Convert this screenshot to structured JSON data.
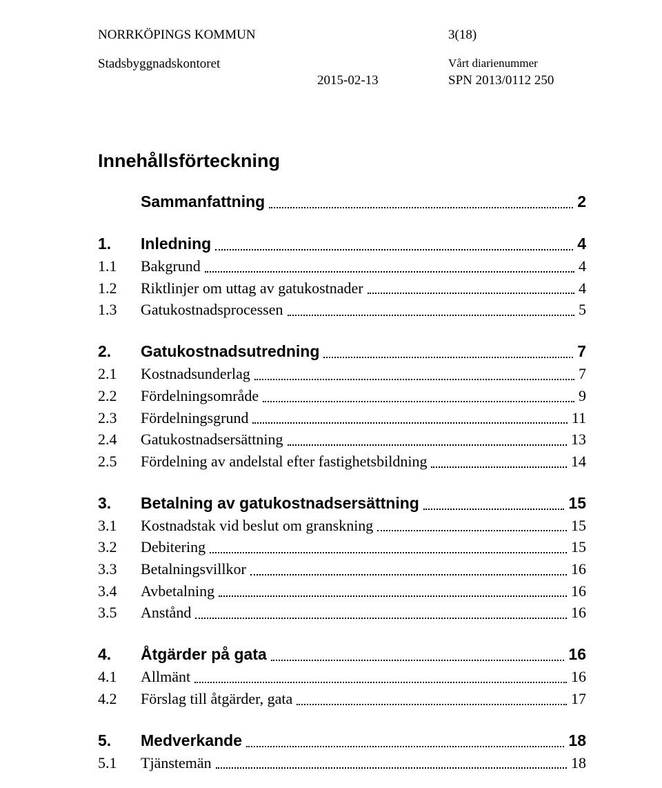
{
  "header": {
    "org": "NORRKÖPINGS KOMMUN",
    "page_ref": "3(18)",
    "dept": "Stadsbyggnadskontoret",
    "date": "2015-02-13",
    "diary_label": "Vårt diarienummer",
    "diary_value": "SPN 2013/0112 250"
  },
  "toc": {
    "title": "Innehållsförteckning",
    "entries": [
      {
        "level": "top",
        "num": "",
        "text": "Sammanfattning",
        "page": "2"
      },
      {
        "level": "top",
        "num": "1.",
        "text": "Inledning",
        "page": "4"
      },
      {
        "level": "sub",
        "num": "1.1",
        "text": "Bakgrund",
        "page": "4"
      },
      {
        "level": "sub",
        "num": "1.2",
        "text": "Riktlinjer om uttag av gatukostnader",
        "page": "4"
      },
      {
        "level": "sub",
        "num": "1.3",
        "text": "Gatukostnadsprocessen",
        "page": "5"
      },
      {
        "level": "top",
        "num": "2.",
        "text": "Gatukostnadsutredning",
        "page": "7"
      },
      {
        "level": "sub",
        "num": "2.1",
        "text": "Kostnadsunderlag",
        "page": "7"
      },
      {
        "level": "sub",
        "num": "2.2",
        "text": "Fördelningsområde",
        "page": "9"
      },
      {
        "level": "sub",
        "num": "2.3",
        "text": "Fördelningsgrund",
        "page": "11"
      },
      {
        "level": "sub",
        "num": "2.4",
        "text": "Gatukostnadsersättning",
        "page": "13"
      },
      {
        "level": "sub",
        "num": "2.5",
        "text": "Fördelning av andelstal efter fastighetsbildning",
        "page": "14"
      },
      {
        "level": "top",
        "num": "3.",
        "text": "Betalning av gatukostnadsersättning",
        "page": "15"
      },
      {
        "level": "sub",
        "num": "3.1",
        "text": "Kostnadstak vid beslut om granskning",
        "page": "15"
      },
      {
        "level": "sub",
        "num": "3.2",
        "text": "Debitering",
        "page": "15"
      },
      {
        "level": "sub",
        "num": "3.3",
        "text": "Betalningsvillkor",
        "page": "16"
      },
      {
        "level": "sub",
        "num": "3.4",
        "text": "Avbetalning",
        "page": "16"
      },
      {
        "level": "sub",
        "num": "3.5",
        "text": "Anstånd",
        "page": "16"
      },
      {
        "level": "top",
        "num": "4.",
        "text": "Åtgärder på gata",
        "page": "16"
      },
      {
        "level": "sub",
        "num": "4.1",
        "text": "Allmänt",
        "page": "16"
      },
      {
        "level": "sub",
        "num": "4.2",
        "text": "Förslag till åtgärder, gata",
        "page": "17"
      },
      {
        "level": "top",
        "num": "5.",
        "text": "Medverkande",
        "page": "18"
      },
      {
        "level": "sub",
        "num": "5.1",
        "text": "Tjänstemän",
        "page": "18"
      }
    ]
  }
}
